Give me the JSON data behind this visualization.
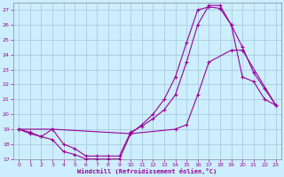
{
  "xlabel": "Windchill (Refroidissement éolien,°C)",
  "bg_color": "#cceeff",
  "grid_color": "#aaccdd",
  "line_color": "#990099",
  "xlim": [
    -0.5,
    23.5
  ],
  "ylim": [
    17,
    27.5
  ],
  "xticks": [
    0,
    1,
    2,
    3,
    4,
    5,
    6,
    7,
    8,
    9,
    10,
    11,
    12,
    13,
    14,
    15,
    16,
    17,
    18,
    19,
    20,
    21,
    22,
    23
  ],
  "yticks": [
    17,
    18,
    19,
    20,
    21,
    22,
    23,
    24,
    25,
    26,
    27
  ],
  "curve1_x": [
    0,
    1,
    2,
    3,
    4,
    5,
    6,
    7,
    8,
    9,
    10,
    11,
    12,
    13,
    14,
    15,
    16,
    17,
    18,
    19,
    20,
    21,
    22,
    23
  ],
  "curve1_y": [
    19.0,
    18.7,
    18.5,
    18.3,
    17.5,
    17.3,
    17.0,
    17.0,
    17.0,
    17.0,
    18.7,
    19.3,
    20.0,
    21.0,
    22.5,
    24.8,
    27.0,
    27.2,
    27.1,
    26.0,
    22.5,
    22.2,
    21.0,
    20.6
  ],
  "curve2_x": [
    0,
    1,
    2,
    3,
    4,
    5,
    6,
    7,
    8,
    9,
    10,
    11,
    12,
    13,
    14,
    15,
    16,
    17,
    18,
    19,
    20,
    21,
    22,
    23
  ],
  "curve2_y": [
    19.0,
    18.8,
    18.5,
    19.0,
    18.0,
    17.7,
    17.2,
    17.2,
    17.2,
    17.2,
    18.8,
    19.2,
    19.7,
    20.3,
    21.3,
    23.5,
    26.0,
    27.3,
    27.3,
    26.0,
    24.5,
    22.8,
    21.7,
    20.6
  ],
  "curve3_x": [
    0,
    3,
    10,
    14,
    15,
    16,
    17,
    19,
    20,
    23
  ],
  "curve3_y": [
    19.0,
    19.0,
    18.7,
    19.0,
    19.3,
    21.3,
    23.5,
    24.3,
    24.3,
    20.6
  ]
}
